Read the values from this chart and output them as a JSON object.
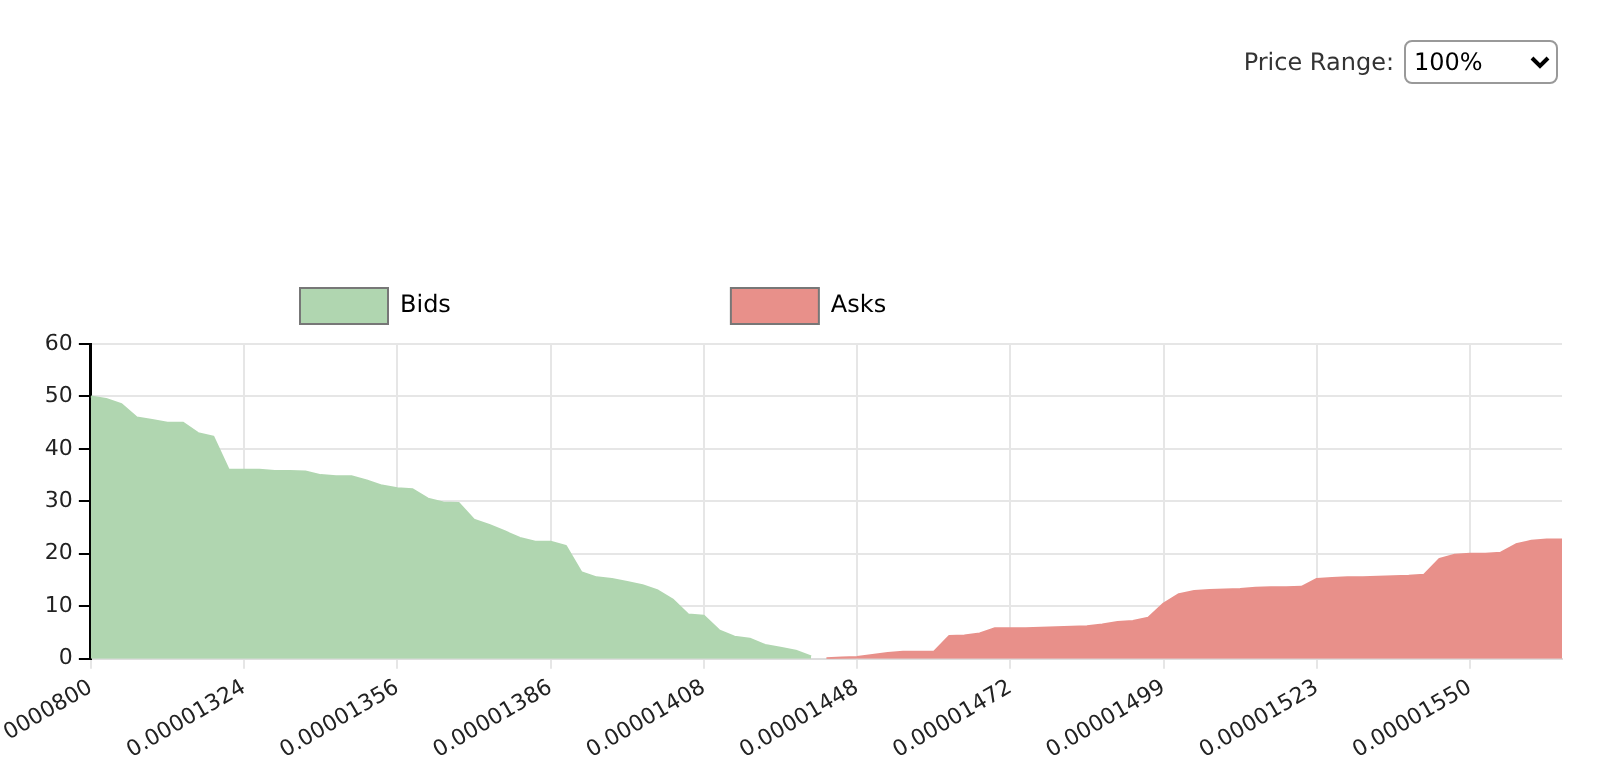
{
  "chart_data": {
    "type": "area",
    "categories": [
      "0000800",
      null,
      null,
      null,
      null,
      null,
      null,
      null,
      null,
      null,
      "0.00001324",
      null,
      null,
      null,
      null,
      null,
      null,
      null,
      null,
      null,
      "0.00001356",
      null,
      null,
      null,
      null,
      null,
      null,
      null,
      null,
      null,
      "0.00001386",
      null,
      null,
      null,
      null,
      null,
      null,
      null,
      null,
      null,
      "0.00001408",
      null,
      null,
      null,
      null,
      null,
      null,
      null,
      null,
      null,
      "0.00001448",
      null,
      null,
      null,
      null,
      null,
      null,
      null,
      null,
      null,
      "0.00001472",
      null,
      null,
      null,
      null,
      null,
      null,
      null,
      null,
      null,
      "0.00001499",
      null,
      null,
      null,
      null,
      null,
      null,
      null,
      null,
      null,
      "0.00001523",
      null,
      null,
      null,
      null,
      null,
      null,
      null,
      null,
      null,
      "0.00001550",
      null,
      null,
      null,
      null,
      null,
      null
    ],
    "series": [
      {
        "name": "Bids",
        "color": "#b0d6b0",
        "values": [
          50,
          49.5,
          48.5,
          46,
          45.5,
          45,
          45,
          43,
          42.3,
          36,
          36,
          36,
          35.8,
          35.8,
          35.7,
          35,
          34.8,
          34.8,
          34,
          33,
          32.5,
          32.3,
          30.5,
          29.8,
          29.7,
          26.5,
          25.5,
          24.3,
          23,
          22.3,
          22.3,
          21.5,
          16.5,
          15.5,
          15.2,
          14.6,
          14,
          13,
          11.2,
          8.4,
          8.2,
          5.4,
          4.2,
          3.8,
          2.6,
          2.1,
          1.5,
          0.4,
          null,
          null,
          null,
          null,
          null,
          null,
          null,
          null,
          null,
          null,
          null,
          null,
          null,
          null,
          null,
          null,
          null,
          null,
          null,
          null,
          null,
          null,
          null,
          null,
          null,
          null,
          null,
          null,
          null,
          null,
          null,
          null,
          null,
          null,
          null,
          null,
          null,
          null,
          null,
          null,
          null,
          null,
          null,
          null,
          null,
          null,
          null,
          null,
          null
        ]
      },
      {
        "name": "Asks",
        "color": "#e8908a",
        "values": [
          null,
          null,
          null,
          null,
          null,
          null,
          null,
          null,
          null,
          null,
          null,
          null,
          null,
          null,
          null,
          null,
          null,
          null,
          null,
          null,
          null,
          null,
          null,
          null,
          null,
          null,
          null,
          null,
          null,
          null,
          null,
          null,
          null,
          null,
          null,
          null,
          null,
          null,
          null,
          null,
          null,
          null,
          null,
          null,
          null,
          null,
          null,
          null,
          0.1,
          0.2,
          0.3,
          0.7,
          1.1,
          1.3,
          1.3,
          1.3,
          4.3,
          4.4,
          4.8,
          5.8,
          5.8,
          5.8,
          5.9,
          6,
          6.1,
          6.2,
          6.5,
          7,
          7.2,
          7.8,
          10.5,
          12.3,
          12.9,
          13.1,
          13.2,
          13.3,
          13.5,
          13.6,
          13.6,
          13.7,
          15.2,
          15.4,
          15.5,
          15.5,
          15.6,
          15.7,
          15.8,
          16,
          19,
          19.8,
          20,
          20,
          20.2,
          21.8,
          22.5,
          22.7,
          22.7
        ]
      }
    ],
    "ylim": [
      0,
      60
    ],
    "yticks": [
      0,
      10,
      20,
      30,
      40,
      50,
      60
    ],
    "grid": true,
    "legend": "top left",
    "marker": "none",
    "annotations": [
      "Price Range:",
      "100%"
    ]
  }
}
